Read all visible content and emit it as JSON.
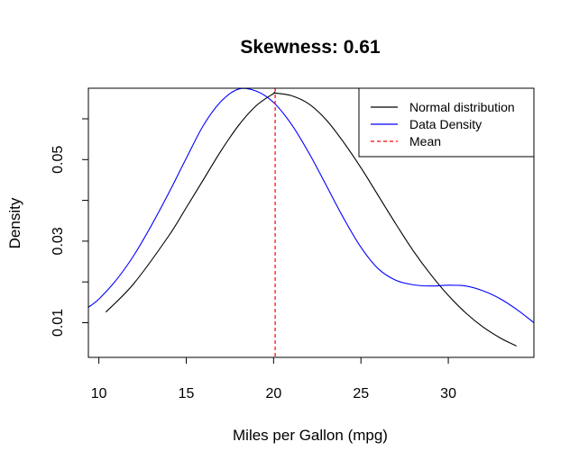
{
  "chart_data": {
    "type": "line",
    "title": "Skewness: 0.61",
    "xlabel": "Miles per Gallon (mpg)",
    "ylabel": "Density",
    "xlim": [
      9.4,
      34.9
    ],
    "ylim": [
      0.0015,
      0.0675
    ],
    "x_ticks": [
      {
        "value": 10,
        "label": "10"
      },
      {
        "value": 15,
        "label": "15"
      },
      {
        "value": 20,
        "label": "20"
      },
      {
        "value": 25,
        "label": "25"
      },
      {
        "value": 30,
        "label": "30"
      }
    ],
    "y_ticks": [
      {
        "value": 0.01,
        "label": "0.01",
        "labeled": true
      },
      {
        "value": 0.02,
        "label": "",
        "labeled": false
      },
      {
        "value": 0.03,
        "label": "0.03",
        "labeled": true
      },
      {
        "value": 0.04,
        "label": "",
        "labeled": false
      },
      {
        "value": 0.05,
        "label": "0.05",
        "labeled": true
      },
      {
        "value": 0.06,
        "label": "",
        "labeled": false
      }
    ],
    "grid": false,
    "legend_position": "top-right",
    "series": [
      {
        "name": "Normal distribution",
        "color": "#000000",
        "style": "solid",
        "x": [
          10.4,
          12,
          14,
          15,
          16,
          17,
          18,
          19,
          20,
          20.1,
          21,
          22,
          23,
          24,
          25,
          26,
          27,
          28,
          29,
          30,
          31,
          32,
          33,
          33.9
        ],
        "y": [
          0.0126,
          0.0196,
          0.0313,
          0.0382,
          0.0452,
          0.0522,
          0.0584,
          0.0632,
          0.0662,
          0.0663,
          0.0657,
          0.0637,
          0.0598,
          0.0543,
          0.048,
          0.0411,
          0.0342,
          0.0276,
          0.0218,
          0.0167,
          0.0124,
          0.0089,
          0.0062,
          0.0043
        ]
      },
      {
        "name": "Data Density",
        "color": "#0000ff",
        "style": "solid",
        "x": [
          9.4,
          10,
          11,
          12,
          13,
          14,
          15,
          16,
          17,
          18,
          19,
          20,
          21,
          22,
          23,
          24,
          25,
          26,
          27,
          28,
          29,
          30,
          31,
          32,
          33,
          34,
          34.9
        ],
        "y": [
          0.0138,
          0.0158,
          0.0205,
          0.0265,
          0.0338,
          0.0418,
          0.0503,
          0.0585,
          0.0643,
          0.0673,
          0.0668,
          0.064,
          0.0588,
          0.0518,
          0.0438,
          0.0357,
          0.0285,
          0.0232,
          0.0204,
          0.0193,
          0.019,
          0.0192,
          0.019,
          0.0178,
          0.0158,
          0.013,
          0.01
        ]
      },
      {
        "name": "Mean",
        "color": "#ff0000",
        "style": "dashed",
        "vline_x": 20.09
      }
    ]
  }
}
